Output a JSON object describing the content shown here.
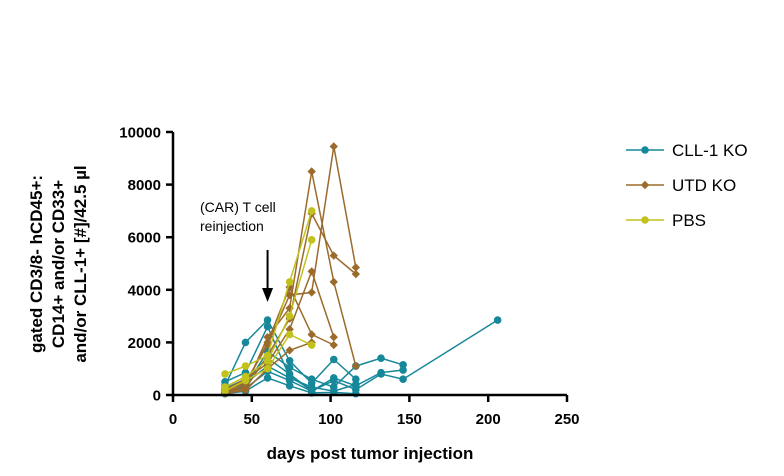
{
  "chart_data": {
    "type": "line",
    "title": "",
    "xlabel": "days post tumor injection",
    "ylabel_lines": [
      "gated CD3/8- hCD45+:",
      "CD14+ and/or  CD33+",
      "and/or CLL-1+ [#]/42.5 µl"
    ],
    "xlim": [
      0,
      250
    ],
    "ylim": [
      0,
      10000
    ],
    "x_ticks": [
      0,
      50,
      100,
      150,
      200,
      250
    ],
    "y_ticks": [
      0,
      2000,
      4000,
      6000,
      8000,
      10000
    ],
    "annotation": {
      "lines": [
        "(CAR) T cell",
        "reinjection"
      ],
      "arrow_x": 60
    },
    "legend_position": "right",
    "groups": [
      {
        "name": "CLL-1 KO",
        "color": "#17889a",
        "marker": "circle",
        "series": [
          {
            "x": [
              33,
              46,
              60,
              74,
              88,
              102,
              116
            ],
            "y": [
              350,
              2000,
              2850,
              1300,
              450,
              1350,
              600
            ]
          },
          {
            "x": [
              33,
              46,
              60,
              74,
              88
            ],
            "y": [
              500,
              850,
              2600,
              700,
              200
            ]
          },
          {
            "x": [
              33,
              46,
              60,
              74,
              88,
              102,
              116,
              132,
              146,
              206
            ],
            "y": [
              250,
              600,
              1400,
              800,
              150,
              550,
              200,
              800,
              600,
              2850
            ]
          },
          {
            "x": [
              33,
              46,
              60,
              74,
              88,
              102,
              116,
              132,
              146
            ],
            "y": [
              150,
              350,
              1650,
              1050,
              600,
              300,
              1100,
              1400,
              1150
            ]
          },
          {
            "x": [
              33,
              46,
              60,
              74,
              88,
              102,
              116
            ],
            "y": [
              200,
              450,
              1100,
              650,
              300,
              150,
              400
            ]
          },
          {
            "x": [
              33,
              46,
              60,
              74,
              88,
              102,
              116,
              132,
              146
            ],
            "y": [
              100,
              250,
              900,
              550,
              150,
              650,
              350,
              850,
              950
            ]
          },
          {
            "x": [
              33,
              46,
              60,
              74,
              88,
              102,
              116
            ],
            "y": [
              50,
              150,
              650,
              350,
              80,
              100,
              50
            ]
          }
        ]
      },
      {
        "name": "UTD KO",
        "color": "#9b6b2c",
        "marker": "diamond",
        "series": [
          {
            "x": [
              33,
              46,
              60,
              74,
              88,
              102,
              116
            ],
            "y": [
              100,
              300,
              2200,
              3300,
              8500,
              4300,
              1100
            ]
          },
          {
            "x": [
              33,
              46,
              60,
              74,
              88,
              102,
              116
            ],
            "y": [
              150,
              500,
              1900,
              3800,
              3900,
              9450,
              4850
            ]
          },
          {
            "x": [
              33,
              46,
              60,
              74,
              88,
              102,
              116
            ],
            "y": [
              80,
              250,
              1500,
              2900,
              6900,
              5300,
              4600
            ]
          },
          {
            "x": [
              33,
              46,
              60,
              74,
              88,
              102
            ],
            "y": [
              200,
              600,
              1200,
              2500,
              4700,
              2200
            ]
          },
          {
            "x": [
              33,
              46,
              60,
              74,
              88,
              102
            ],
            "y": [
              120,
              400,
              2000,
              4100,
              2300,
              1900
            ]
          },
          {
            "x": [
              33,
              46,
              60,
              74,
              88
            ],
            "y": [
              60,
              180,
              1000,
              1700,
              2000
            ]
          }
        ]
      },
      {
        "name": "PBS",
        "color": "#c2c21e",
        "marker": "circle",
        "series": [
          {
            "x": [
              33,
              46,
              60,
              74,
              88
            ],
            "y": [
              800,
              1100,
              1500,
              4300,
              7000
            ]
          },
          {
            "x": [
              33,
              46,
              60,
              74,
              88
            ],
            "y": [
              300,
              700,
              1300,
              3000,
              5900
            ]
          },
          {
            "x": [
              33,
              46,
              60,
              74,
              88
            ],
            "y": [
              150,
              550,
              1000,
              2300,
              1900
            ]
          }
        ]
      }
    ]
  }
}
